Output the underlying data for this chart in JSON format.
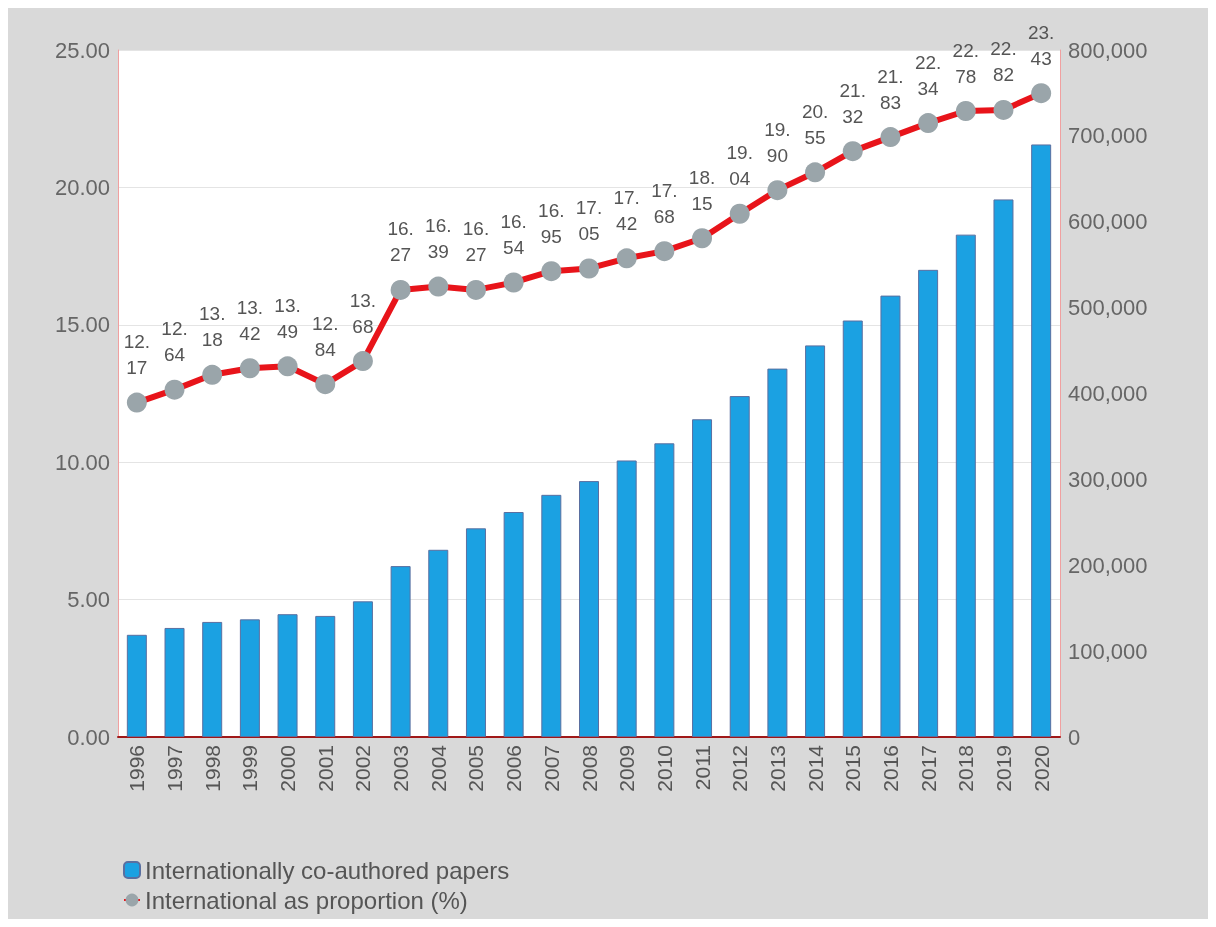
{
  "chart_data": {
    "type": "bar",
    "categories": [
      "1996",
      "1997",
      "1998",
      "1999",
      "2000",
      "2001",
      "2002",
      "2003",
      "2004",
      "2005",
      "2006",
      "2007",
      "2008",
      "2009",
      "2010",
      "2011",
      "2012",
      "2013",
      "2014",
      "2015",
      "2016",
      "2017",
      "2018",
      "2019",
      "2020"
    ],
    "series": [
      {
        "name": "Internationally co-authored papers",
        "axis": "y2",
        "color": "#1ba1e2",
        "values": [
          119000,
          127000,
          134000,
          137000,
          143000,
          141000,
          158000,
          199000,
          218000,
          243000,
          262000,
          282000,
          298000,
          322000,
          342000,
          370000,
          397000,
          429000,
          456000,
          485000,
          514000,
          544000,
          585000,
          626000,
          690000
        ]
      },
      {
        "name": "International as proportion (%)",
        "type": "line",
        "axis": "y",
        "color": "#e8141a",
        "marker": "circle",
        "value_labels": [
          "12.17",
          "12.64",
          "13.18",
          "13.42",
          "13.49",
          "12.84",
          "13.68",
          "16.27",
          "16.39",
          "16.27",
          "16.54",
          "16.95",
          "17.05",
          "17.42",
          "17.68",
          "18.15",
          "19.04",
          "19.90",
          "20.55",
          "21.32",
          "21.83",
          "22.34",
          "22.78",
          "22.82",
          "23.43"
        ],
        "values": [
          12.17,
          12.64,
          13.18,
          13.42,
          13.49,
          12.84,
          13.68,
          16.27,
          16.39,
          16.27,
          16.54,
          16.95,
          17.05,
          17.42,
          17.68,
          18.15,
          19.04,
          19.9,
          20.55,
          21.32,
          21.83,
          22.34,
          22.78,
          22.82,
          23.43
        ]
      }
    ],
    "ylim": [
      0,
      25
    ],
    "yticks": [
      {
        "value": 0,
        "label": "0.00"
      },
      {
        "value": 5,
        "label": "5.00"
      },
      {
        "value": 10,
        "label": "10.00"
      },
      {
        "value": 15,
        "label": "15.00"
      },
      {
        "value": 20,
        "label": "20.00"
      },
      {
        "value": 25,
        "label": "25.00"
      }
    ],
    "y2lim": [
      0,
      800000
    ],
    "y2ticks": [
      0,
      {
        "value": 100000,
        "label": "100,000"
      },
      {
        "value": 200000,
        "label": "200,000"
      },
      {
        "value": 300000,
        "label": "300,000"
      },
      {
        "value": 400000,
        "label": "400,000"
      },
      {
        "value": 500000,
        "label": "500,000"
      },
      {
        "value": 600000,
        "label": "600,000"
      },
      {
        "value": 700000,
        "label": "700,000"
      },
      {
        "value": 800000,
        "label": "800,000"
      }
    ],
    "grid": "y",
    "legend": "bottom left"
  }
}
